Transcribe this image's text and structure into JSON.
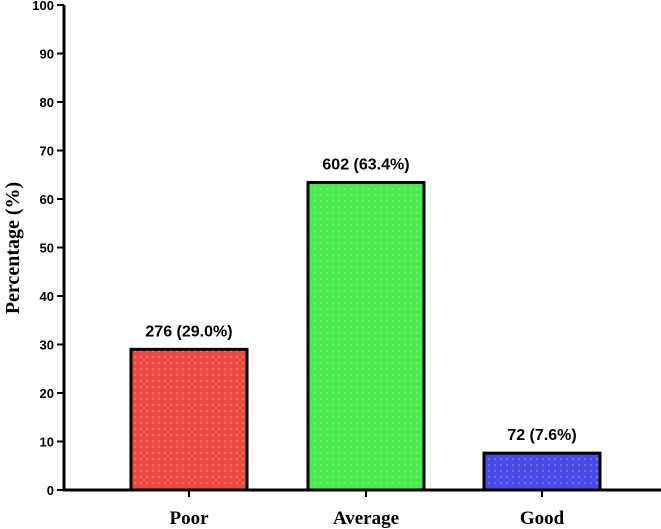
{
  "chart_data": {
    "type": "bar",
    "categories": [
      "Poor",
      "Average",
      "Good"
    ],
    "values": [
      29.0,
      63.4,
      7.6
    ],
    "data_labels": [
      "276 (29.0%)",
      "602 (63.4%)",
      "72 (7.6%)"
    ],
    "ylabel": "Percentage (%)",
    "xlabel": "",
    "ylim": [
      0,
      100
    ],
    "yticks": [
      "0",
      "10",
      "20",
      "30",
      "40",
      "50",
      "60",
      "70",
      "80",
      "90",
      "100"
    ],
    "colors": [
      "#ef4b45",
      "#4bea4f",
      "#4a4ae6"
    ],
    "grid": false,
    "legend": "none"
  }
}
